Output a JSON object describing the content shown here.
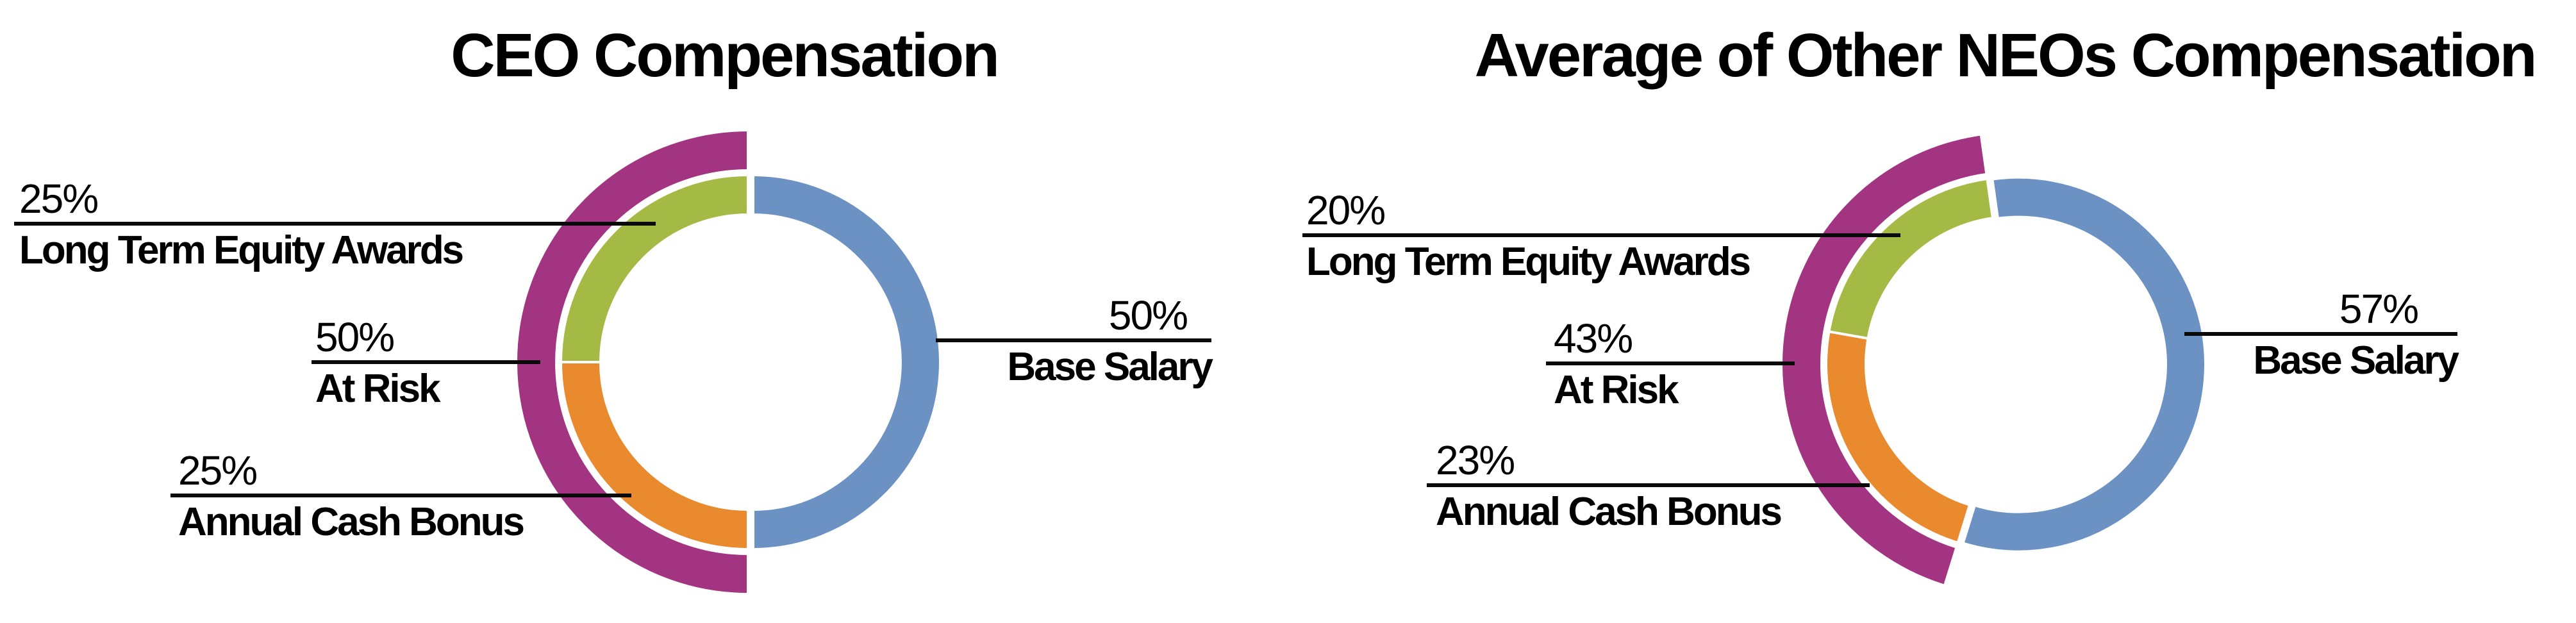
{
  "colors": {
    "base_salary": "#6C91C3",
    "annual_cash_bonus": "#E98A2E",
    "long_term_equity_awards": "#A4BA45",
    "at_risk": "#A23482",
    "callout_line": "#0A0A0A",
    "text": "#000000",
    "background": "#FFFFFF"
  },
  "charts": [
    {
      "title": "CEO Compensation",
      "callouts": [
        {
          "pct": "25%",
          "label": "Long Term Equity Awards"
        },
        {
          "pct": "50%",
          "label": "At Risk"
        },
        {
          "pct": "25%",
          "label": "Annual Cash Bonus"
        },
        {
          "pct": "50%",
          "label": "Base Salary"
        }
      ]
    },
    {
      "title": "Average of Other NEOs Compensation",
      "callouts": [
        {
          "pct": "20%",
          "label": "Long Term Equity Awards"
        },
        {
          "pct": "43%",
          "label": "At Risk"
        },
        {
          "pct": "23%",
          "label": "Annual Cash Bonus"
        },
        {
          "pct": "57%",
          "label": "Base Salary"
        }
      ]
    }
  ],
  "chart_data": [
    {
      "type": "pie",
      "subtype": "donut-with-outer-ring",
      "title": "CEO Compensation",
      "inner_ring": [
        {
          "label": "Base Salary",
          "value_pct": 50,
          "color": "#6C91C3"
        },
        {
          "label": "Annual Cash Bonus",
          "value_pct": 25,
          "color": "#E98A2E"
        },
        {
          "label": "Long Term Equity Awards",
          "value_pct": 25,
          "color": "#A4BA45"
        }
      ],
      "outer_ring": [
        {
          "label": "At Risk",
          "value_pct": 50,
          "color": "#A23482"
        }
      ],
      "rotation_deg_clockwise_from_12": 0,
      "legend": "none",
      "labels": "external callouts with leader underlines"
    },
    {
      "type": "pie",
      "subtype": "donut-with-outer-ring",
      "title": "Average of Other NEOs Compensation",
      "inner_ring": [
        {
          "label": "Base Salary",
          "value_pct": 57,
          "color": "#6C91C3"
        },
        {
          "label": "Annual Cash Bonus",
          "value_pct": 23,
          "color": "#E98A2E"
        },
        {
          "label": "Long Term Equity Awards",
          "value_pct": 20,
          "color": "#A4BA45"
        }
      ],
      "outer_ring": [
        {
          "label": "At Risk",
          "value_pct": 43,
          "color": "#A23482"
        }
      ],
      "rotation_deg_clockwise_from_12": -8,
      "legend": "none",
      "labels": "external callouts with leader underlines"
    }
  ]
}
